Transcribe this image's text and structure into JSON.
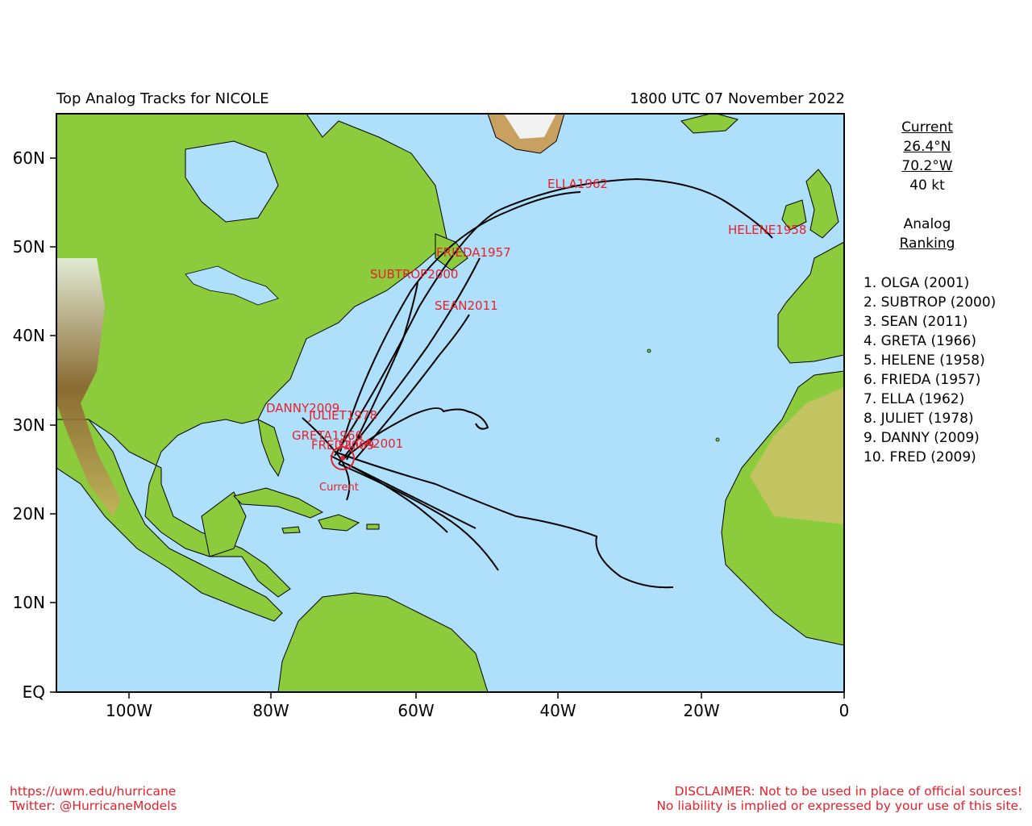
{
  "header": {
    "title": "Top Analog Tracks for NICOLE",
    "datetime": "1800 UTC 07 November 2022"
  },
  "axes": {
    "lon_labels": [
      "100W",
      "80W",
      "60W",
      "40W",
      "20W",
      "0"
    ],
    "lat_labels": [
      "60N",
      "50N",
      "40N",
      "30N",
      "20N",
      "10N",
      "EQ"
    ]
  },
  "current": {
    "heading": "Current",
    "lat": "26.4°N",
    "lon": "70.2°W",
    "intensity": "40 kt",
    "marker_label": "Current"
  },
  "ranking": {
    "heading_line1": "Analog",
    "heading_line2": "Ranking",
    "items": [
      "1.  OLGA (2001)",
      "2.  SUBTROP (2000)",
      "3.  SEAN (2011)",
      "4.  GRETA (1966)",
      "5.  HELENE (1958)",
      "6.  FRIEDA (1957)",
      "7.  ELLA (1962)",
      "8.  JULIET (1978)",
      "9.  DANNY (2009)",
      "10. FRED (2009)"
    ]
  },
  "track_labels": {
    "ella": "ELLA1962",
    "helene": "HELENE1958",
    "frieda": "FRIEDA1957",
    "subtrop": "SUBTROP2000",
    "sean": "SEAN2011",
    "danny": "DANNY2009",
    "juliet": "JULIET1978",
    "greta": "GRETA1966",
    "fred": "FRED2009",
    "olga": "OLGA2001"
  },
  "footer": {
    "url": "https://uwm.edu/hurricane",
    "twitter": "Twitter: @HurricaneModels",
    "disclaimer1": "DISCLAIMER: Not to be used in place of official sources!",
    "disclaimer2": "No liability is implied or expressed by your use of this site."
  },
  "colors": {
    "ocean": "#aee0fb",
    "land": "#8ccc3c",
    "track": "#000000",
    "label": "#e8202a"
  }
}
